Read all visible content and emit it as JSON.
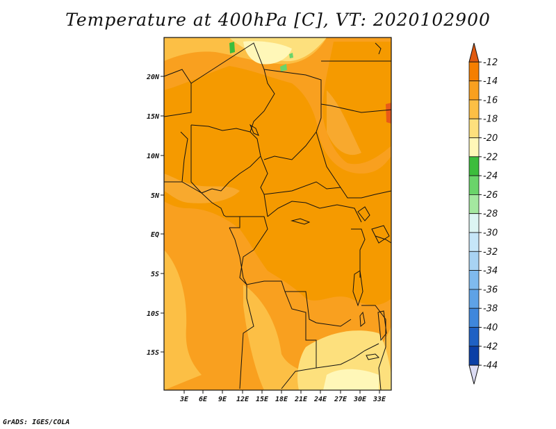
{
  "title": "Temperature at 400hPa [C], VT: 2020102900",
  "credit": "GrADS: IGES/COLA",
  "map": {
    "lon_labels": [
      "3E",
      "6E",
      "9E",
      "12E",
      "15E",
      "18E",
      "21E",
      "24E",
      "27E",
      "30E",
      "33E"
    ],
    "lat_labels": [
      "20N",
      "15N",
      "10N",
      "5N",
      "EQ",
      "5S",
      "10S",
      "15S"
    ]
  },
  "colorbar": {
    "labels": [
      "-12",
      "-14",
      "-16",
      "-18",
      "-20",
      "-22",
      "-24",
      "-26",
      "-28",
      "-30",
      "-32",
      "-34",
      "-36",
      "-38",
      "-40",
      "-42",
      "-44"
    ],
    "colors": [
      "#e05a10",
      "#f57f00",
      "#f9a01f",
      "#fcbf45",
      "#fde07d",
      "#fff7b8",
      "#3cbd3c",
      "#6ad46a",
      "#a4e8a0",
      "#dcf5f3",
      "#c6e6f8",
      "#a8d3f3",
      "#7fbaee",
      "#5ea2e6",
      "#3f87dc",
      "#1f61c4",
      "#0b3fa6",
      "#0a1a70",
      "#dcdcf4"
    ]
  }
}
